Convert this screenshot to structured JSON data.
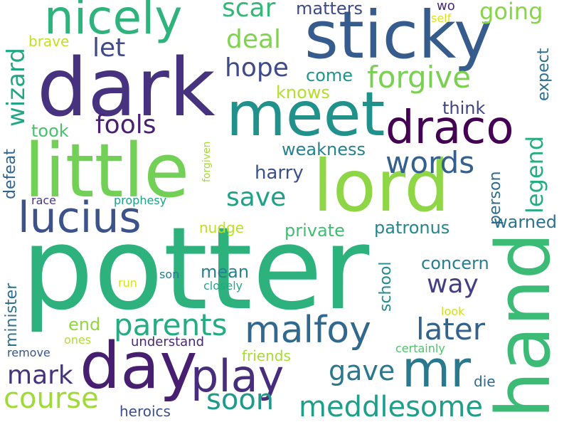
{
  "words": [
    {
      "text": "potter",
      "color": "#2db27d",
      "vertical": false
    },
    {
      "text": "hand",
      "color": "#3bbb75",
      "vertical": true
    },
    {
      "text": "dark",
      "color": "#46327e",
      "vertical": false
    },
    {
      "text": "lord",
      "color": "#8ed645",
      "vertical": false
    },
    {
      "text": "little",
      "color": "#73d056",
      "vertical": false
    },
    {
      "text": "sticky",
      "color": "#365c8d",
      "vertical": false
    },
    {
      "text": "meet",
      "color": "#21918c",
      "vertical": false
    },
    {
      "text": "day",
      "color": "#481f70",
      "vertical": false
    },
    {
      "text": "mr",
      "color": "#2a788e",
      "vertical": false
    },
    {
      "text": "draco",
      "color": "#440154",
      "vertical": false
    },
    {
      "text": "nicely",
      "color": "#2eb37c",
      "vertical": false
    },
    {
      "text": "play",
      "color": "#472d7b",
      "vertical": false
    },
    {
      "text": "lucius",
      "color": "#3b528b",
      "vertical": false
    },
    {
      "text": "malfoy",
      "color": "#31688e",
      "vertical": false
    },
    {
      "text": "parents",
      "color": "#25ac82",
      "vertical": false
    },
    {
      "text": "later",
      "color": "#33638d",
      "vertical": false
    },
    {
      "text": "words",
      "color": "#355f8d",
      "vertical": false
    },
    {
      "text": "forgive",
      "color": "#7ad151",
      "vertical": false
    },
    {
      "text": "meddlesome",
      "color": "#1f9e89",
      "vertical": false
    },
    {
      "text": "course",
      "color": "#a0da39",
      "vertical": false
    },
    {
      "text": "soon",
      "color": "#1f9a8a",
      "vertical": false
    },
    {
      "text": "gave",
      "color": "#2a788e",
      "vertical": false
    },
    {
      "text": "hope",
      "color": "#3e4a89",
      "vertical": false
    },
    {
      "text": "deal",
      "color": "#7fd34e",
      "vertical": false
    },
    {
      "text": "scar",
      "color": "#35b779",
      "vertical": false
    },
    {
      "text": "mark",
      "color": "#46337f",
      "vertical": false
    },
    {
      "text": "save",
      "color": "#1fa188",
      "vertical": false
    },
    {
      "text": "fools",
      "color": "#482173",
      "vertical": false
    },
    {
      "text": "way",
      "color": "#433e85",
      "vertical": false
    },
    {
      "text": "let",
      "color": "#3f4889",
      "vertical": false
    },
    {
      "text": "going",
      "color": "#86d549",
      "vertical": false
    },
    {
      "text": "wizard",
      "color": "#22a785",
      "vertical": true
    },
    {
      "text": "legend",
      "color": "#27ad81",
      "vertical": true
    },
    {
      "text": "harry",
      "color": "#3b518b",
      "vertical": false
    },
    {
      "text": "matters",
      "color": "#3e4989",
      "vertical": false
    },
    {
      "text": "patronus",
      "color": "#24868e",
      "vertical": false
    },
    {
      "text": "weakness",
      "color": "#25838e",
      "vertical": false
    },
    {
      "text": "concern",
      "color": "#277f8e",
      "vertical": false
    },
    {
      "text": "mean",
      "color": "#26828e",
      "vertical": false
    },
    {
      "text": "private",
      "color": "#40bd72",
      "vertical": false
    },
    {
      "text": "think",
      "color": "#414487",
      "vertical": false
    },
    {
      "text": "warned",
      "color": "#2c728e",
      "vertical": false
    },
    {
      "text": "come",
      "color": "#1f968b",
      "vertical": false
    },
    {
      "text": "knows",
      "color": "#b5de2b",
      "vertical": false
    },
    {
      "text": "took",
      "color": "#4ac16d",
      "vertical": false
    },
    {
      "text": "end",
      "color": "#93d741",
      "vertical": false
    },
    {
      "text": "expect",
      "color": "#2c718e",
      "vertical": true
    },
    {
      "text": "school",
      "color": "#238a8d",
      "vertical": true
    },
    {
      "text": "minister",
      "color": "#2d708e",
      "vertical": true
    },
    {
      "text": "defeat",
      "color": "#32658e",
      "vertical": true
    },
    {
      "text": "person",
      "color": "#2f6b8e",
      "vertical": true
    },
    {
      "text": "brave",
      "color": "#c2df23",
      "vertical": false
    },
    {
      "text": "nudge",
      "color": "#bddf26",
      "vertical": false
    },
    {
      "text": "friends",
      "color": "#a8db34",
      "vertical": false
    },
    {
      "text": "heroics",
      "color": "#3c4f8a",
      "vertical": false
    },
    {
      "text": "die",
      "color": "#306a8e",
      "vertical": false
    },
    {
      "text": "understand",
      "color": "#472a7a",
      "vertical": false
    },
    {
      "text": "wo",
      "color": "#482576",
      "vertical": false
    },
    {
      "text": "race",
      "color": "#453882",
      "vertical": false
    },
    {
      "text": "prophesy",
      "color": "#1fa088",
      "vertical": false
    },
    {
      "text": "closely",
      "color": "#22a884",
      "vertical": false
    },
    {
      "text": "son",
      "color": "#29798e",
      "vertical": false
    },
    {
      "text": "run",
      "color": "#d8e219",
      "vertical": false
    },
    {
      "text": "look",
      "color": "#d0e11c",
      "vertical": false
    },
    {
      "text": "certainly",
      "color": "#4ec36b",
      "vertical": false
    },
    {
      "text": "ones",
      "color": "#b0dd2f",
      "vertical": false
    },
    {
      "text": "remove",
      "color": "#39568c",
      "vertical": false
    },
    {
      "text": "self",
      "color": "#dde318",
      "vertical": false
    },
    {
      "text": "forgiven",
      "color": "#a5db36",
      "vertical": true
    }
  ]
}
